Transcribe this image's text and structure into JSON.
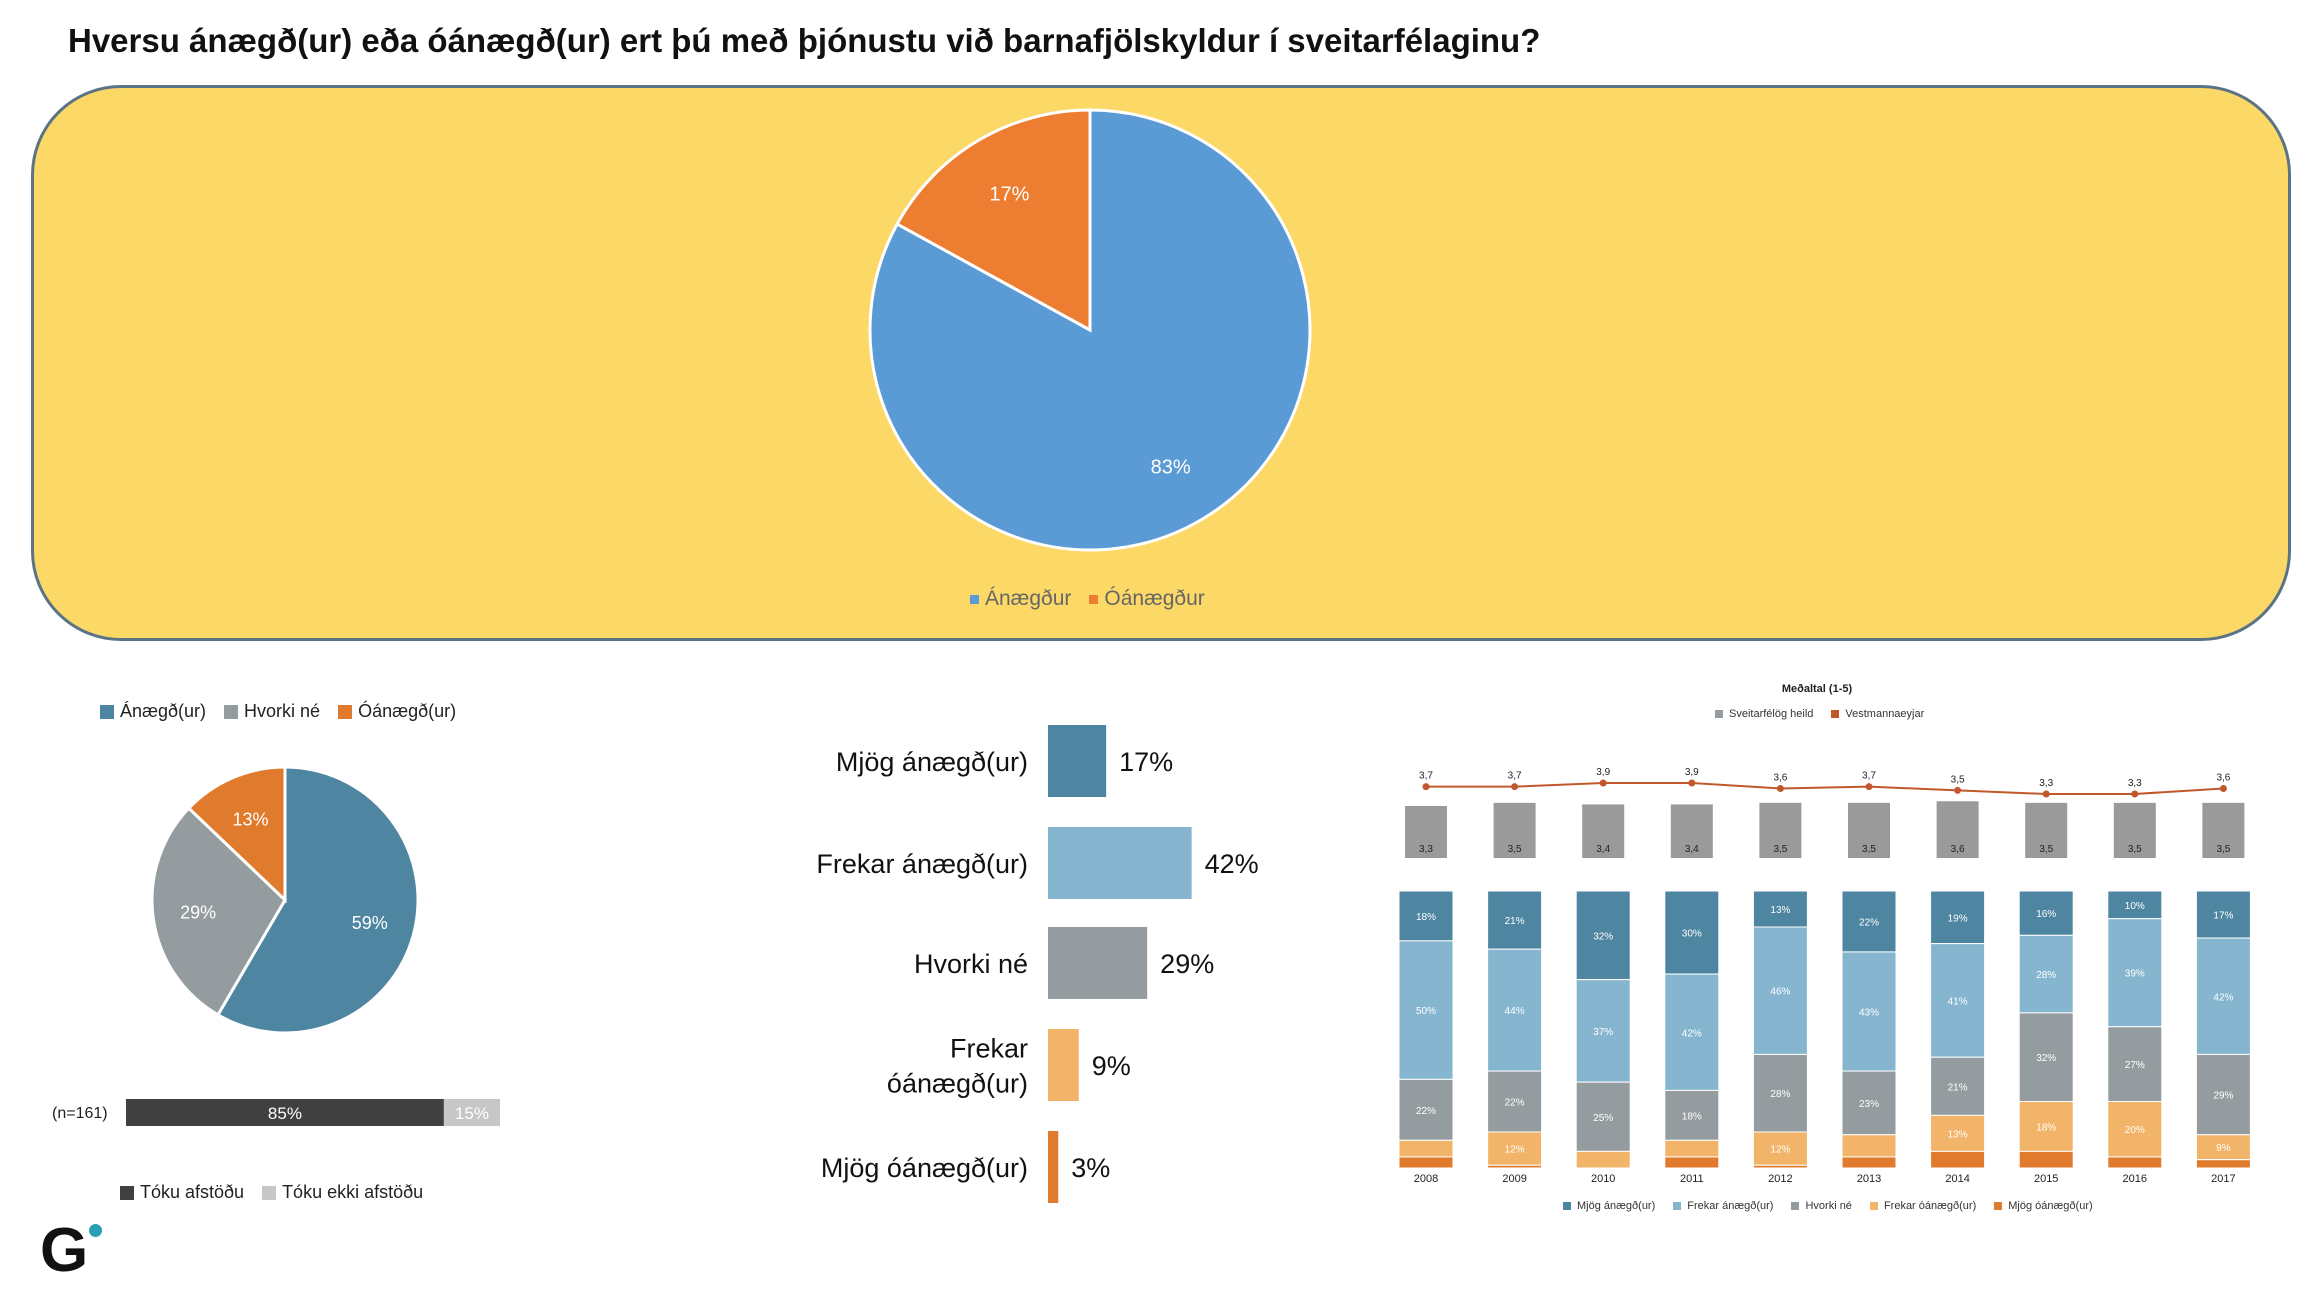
{
  "title": "Hversu ánægð(ur) eða óánægð(ur) ert þú með þjónustu við barnafjölskyldur í sveitarfélaginu?",
  "colors": {
    "panel_bg": "#fcd866",
    "blue": "#5b9bd5",
    "orange": "#ed7d31",
    "teal": "#4e85a0",
    "light_blue": "#86b6cf",
    "gray": "#959c9f",
    "light_orange": "#f2b468",
    "dark_orange": "#e07b2d",
    "dark_gray": "#404040",
    "light_gray": "#c7c7c7",
    "line_red": "#c0582c"
  },
  "chart_data": [
    {
      "type": "pie",
      "categories": [
        "Ánægður",
        "Óánægður"
      ],
      "values": [
        83,
        17
      ],
      "labels": [
        "83%",
        "17%"
      ],
      "legend": [
        "Ánægður",
        "Óánægður"
      ],
      "legend_position": "bottom"
    },
    {
      "type": "pie",
      "categories": [
        "Ánægð(ur)",
        "Hvorki né",
        "Óánægð(ur)"
      ],
      "values": [
        59,
        29,
        13
      ],
      "labels": [
        "59%",
        "29%",
        "13%"
      ],
      "legend": [
        "Ánægð(ur)",
        "Hvorki né",
        "Óánægð(ur)"
      ],
      "legend_position": "top"
    },
    {
      "type": "bar",
      "orientation": "horizontal",
      "stacked": true,
      "n_label": "(n=161)",
      "series": [
        {
          "name": "Tóku afstöðu",
          "values": [
            85
          ],
          "label": "85%"
        },
        {
          "name": "Tóku ekki afstöðu",
          "values": [
            15
          ],
          "label": "15%"
        }
      ]
    },
    {
      "type": "bar",
      "orientation": "horizontal",
      "categories": [
        "Mjög ánægð(ur)",
        "Frekar ánægð(ur)",
        "Hvorki né",
        "Frekar óánægð(ur)",
        "Mjög óánægð(ur)"
      ],
      "category_lines": [
        [
          "Mjög ánægð(ur)"
        ],
        [
          "Frekar ánægð(ur)"
        ],
        [
          "Hvorki né"
        ],
        [
          "Frekar",
          "óánægð(ur)"
        ],
        [
          "Mjög óánægð(ur)"
        ]
      ],
      "values": [
        17,
        42,
        29,
        9,
        3
      ],
      "labels": [
        "17%",
        "42%",
        "29%",
        "9%",
        "3%"
      ]
    },
    {
      "type": "bar",
      "title": "Meðaltal (1-5)",
      "legend": [
        "Sveitarfélög heild",
        "Vestmannaeyjar"
      ],
      "categories": [
        "2008",
        "2009",
        "2010",
        "2011",
        "2012",
        "2013",
        "2014",
        "2015",
        "2016",
        "2017"
      ],
      "series": [
        {
          "name": "Sveitarfélög heild",
          "type": "bar",
          "values": [
            3.3,
            3.5,
            3.4,
            3.4,
            3.5,
            3.5,
            3.6,
            3.5,
            3.5,
            3.5
          ],
          "labels": [
            "3,3",
            "3,5",
            "3,4",
            "3,4",
            "3,5",
            "3,5",
            "3,6",
            "3,5",
            "3,5",
            "3,5"
          ]
        },
        {
          "name": "Vestmannaeyjar",
          "type": "line",
          "values": [
            3.7,
            3.7,
            3.9,
            3.9,
            3.6,
            3.7,
            3.5,
            3.3,
            3.3,
            3.6
          ],
          "labels": [
            "3,7",
            "3,7",
            "3,9",
            "3,9",
            "3,6",
            "3,7",
            "3,5",
            "3,3",
            "3,3",
            "3,6"
          ]
        }
      ]
    },
    {
      "type": "bar",
      "stacked": true,
      "percent": true,
      "categories": [
        "2008",
        "2009",
        "2010",
        "2011",
        "2012",
        "2013",
        "2014",
        "2015",
        "2016",
        "2017"
      ],
      "legend": [
        "Mjög ánægð(ur)",
        "Frekar ánægð(ur)",
        "Hvorki né",
        "Frekar óánægð(ur)",
        "Mjög óánægð(ur)"
      ],
      "legend_position": "bottom",
      "series": [
        {
          "name": "Mjög ánægð(ur)",
          "values": [
            18,
            21,
            32,
            30,
            13,
            22,
            19,
            16,
            10,
            17
          ],
          "labels": [
            "18%",
            "21%",
            "32%",
            "30%",
            "13%",
            "22%",
            "19%",
            "16%",
            "10%",
            "17%"
          ]
        },
        {
          "name": "Frekar ánægð(ur)",
          "values": [
            50,
            44,
            37,
            42,
            46,
            43,
            41,
            28,
            39,
            42
          ],
          "labels": [
            "50%",
            "44%",
            "37%",
            "42%",
            "46%",
            "43%",
            "41%",
            "28%",
            "39%",
            "42%"
          ]
        },
        {
          "name": "Hvorki né",
          "values": [
            22,
            22,
            25,
            18,
            28,
            23,
            21,
            32,
            27,
            29
          ],
          "labels": [
            "22%",
            "22%",
            "25%",
            "18%",
            "28%",
            "23%",
            "21%",
            "32%",
            "27%",
            "29%"
          ]
        },
        {
          "name": "Frekar óánægð(ur)",
          "values": [
            6,
            12,
            6,
            6,
            12,
            8,
            13,
            18,
            20,
            9
          ],
          "labels": [
            "",
            "12%",
            "",
            "",
            "12%",
            "",
            "13%",
            "18%",
            "20%",
            "9%"
          ]
        },
        {
          "name": "Mjög óánægð(ur)",
          "values": [
            4,
            1,
            0,
            4,
            1,
            4,
            6,
            6,
            4,
            3
          ],
          "labels": [
            "",
            "",
            "",
            "",
            "",
            "",
            "",
            "",
            "",
            ""
          ]
        }
      ]
    }
  ],
  "logo": "G"
}
